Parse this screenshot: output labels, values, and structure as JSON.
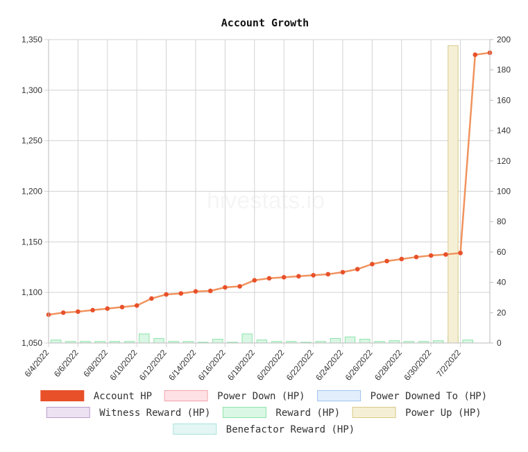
{
  "chart_data": {
    "type": "line+bar",
    "title": "Account Growth",
    "watermark": "hivestats.io",
    "x_tick_labels": [
      "6/4/2022",
      "6/6/2022",
      "6/8/2022",
      "6/10/2022",
      "6/12/2022",
      "6/14/2022",
      "6/16/2022",
      "6/18/2022",
      "6/20/2022",
      "6/22/2022",
      "6/24/2022",
      "6/26/2022",
      "6/28/2022",
      "6/30/2022",
      "7/2/2022"
    ],
    "x_days_count": 30,
    "y_left": {
      "min": 1050,
      "max": 1350,
      "ticks": [
        1050,
        1100,
        1150,
        1200,
        1250,
        1300,
        1350
      ],
      "tick_labels": [
        "1,050",
        "1,100",
        "1,150",
        "1,200",
        "1,250",
        "1,300",
        "1,350"
      ]
    },
    "y_right": {
      "min": 0,
      "max": 200,
      "ticks": [
        0,
        20,
        40,
        60,
        80,
        100,
        120,
        140,
        160,
        180,
        200
      ],
      "tick_labels": [
        "0",
        "20",
        "40",
        "60",
        "80",
        "100",
        "120",
        "140",
        "160",
        "180",
        "200"
      ]
    },
    "series": [
      {
        "name": "Account HP",
        "axis": "left",
        "kind": "line",
        "color": "#e8502a",
        "line_color": "#f0935e",
        "values": [
          1078,
          1080,
          1081,
          1082.5,
          1084,
          1085.5,
          1087,
          1094,
          1098,
          1099,
          1101,
          1101.5,
          1105,
          1106,
          1112,
          1114,
          1115,
          1116,
          1117,
          1118,
          1120,
          1123,
          1128,
          1131,
          1133,
          1135,
          1136.5,
          1137.5,
          1139,
          1335,
          1337
        ]
      },
      {
        "name": "Reward (HP)",
        "axis": "right",
        "kind": "bar",
        "color": "#d9f7e4",
        "border": "#8ee3aa",
        "values": [
          2,
          1,
          1,
          1,
          1,
          1,
          6,
          3,
          1,
          1,
          0.5,
          2.5,
          0.5,
          6,
          2,
          1,
          1,
          0.5,
          1,
          3,
          4,
          2.5,
          1,
          1.5,
          1,
          1,
          1.5,
          5,
          2,
          0
        ]
      },
      {
        "name": "Power Up (HP)",
        "axis": "right",
        "kind": "bar",
        "color": "#f5f0d5",
        "border": "#d8c98a",
        "values": [
          0,
          0,
          0,
          0,
          0,
          0,
          0,
          0,
          0,
          0,
          0,
          0,
          0,
          0,
          0,
          0,
          0,
          0,
          0,
          0,
          0,
          0,
          0,
          0,
          0,
          0,
          0,
          196,
          0,
          0
        ]
      }
    ],
    "legend": [
      {
        "label": "Account HP",
        "fill": "#e8502a",
        "stroke": "#e8502a"
      },
      {
        "label": "Power Down (HP)",
        "fill": "#fde1e4",
        "stroke": "#f2a2ab"
      },
      {
        "label": "Power Downed To (HP)",
        "fill": "#e2eefc",
        "stroke": "#9fc2f0"
      },
      {
        "label": "Witness Reward (HP)",
        "fill": "#ece2f2",
        "stroke": "#b99ccb"
      },
      {
        "label": "Reward (HP)",
        "fill": "#d9f7e4",
        "stroke": "#8ee3aa"
      },
      {
        "label": "Power Up (HP)",
        "fill": "#f5f0d5",
        "stroke": "#d8c98a"
      },
      {
        "label": "Benefactor Reward (HP)",
        "fill": "#e3f6f4",
        "stroke": "#a9e2dc"
      }
    ]
  }
}
